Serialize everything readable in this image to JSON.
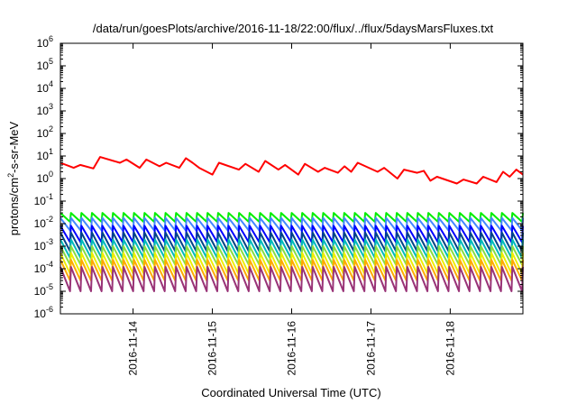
{
  "chart_data": {
    "type": "line",
    "title": "/data/run/goesPlots/archive/2016-11-18/22:00/flux/../flux/5daysMarsFluxes.txt",
    "xlabel": "Coordinated Universal Time (UTC)",
    "ylabel": "protons/cm2-s-sr-MeV",
    "y_scale": "log",
    "ylim": [
      1e-06,
      1000000.0
    ],
    "xlim": [
      "2016-11-13 02:00",
      "2016-11-18 22:00"
    ],
    "grid": false,
    "legend": "none",
    "x_ticks": [
      "2016-11-14",
      "2016-11-15",
      "2016-11-16",
      "2016-11-17",
      "2016-11-18"
    ],
    "y_ticks": [
      {
        "base": "10",
        "exp": "-6"
      },
      {
        "base": "10",
        "exp": "-5"
      },
      {
        "base": "10",
        "exp": "-4"
      },
      {
        "base": "10",
        "exp": "-3"
      },
      {
        "base": "10",
        "exp": "-2"
      },
      {
        "base": "10",
        "exp": "-1"
      },
      {
        "base": "10",
        "exp": "0"
      },
      {
        "base": "10",
        "exp": "1"
      },
      {
        "base": "10",
        "exp": "2"
      },
      {
        "base": "10",
        "exp": "3"
      },
      {
        "base": "10",
        "exp": "4"
      },
      {
        "base": "10",
        "exp": "5"
      },
      {
        "base": "10",
        "exp": "6"
      }
    ],
    "series": [
      {
        "color": "#ff0000",
        "x": [
          "2016-11-13 02:00",
          "2016-11-13 06:00",
          "2016-11-13 08:00",
          "2016-11-13 12:00",
          "2016-11-13 14:00",
          "2016-11-13 20:00",
          "2016-11-13 22:00",
          "2016-11-14 02:00",
          "2016-11-14 04:00",
          "2016-11-14 08:00",
          "2016-11-14 10:00",
          "2016-11-14 14:00",
          "2016-11-14 16:00",
          "2016-11-14 18:00",
          "2016-11-14 20:00",
          "2016-11-15 00:00",
          "2016-11-15 02:00",
          "2016-11-15 08:00",
          "2016-11-15 10:00",
          "2016-11-15 14:00",
          "2016-11-15 16:00",
          "2016-11-15 20:00",
          "2016-11-15 22:00",
          "2016-11-16 02:00",
          "2016-11-16 04:00",
          "2016-11-16 08:00",
          "2016-11-16 10:00",
          "2016-11-16 14:00",
          "2016-11-16 16:00",
          "2016-11-16 18:00",
          "2016-11-16 20:00",
          "2016-11-17 02:00",
          "2016-11-17 04:00",
          "2016-11-17 08:00",
          "2016-11-17 10:00",
          "2016-11-17 14:00",
          "2016-11-17 16:00",
          "2016-11-17 18:00",
          "2016-11-17 20:00",
          "2016-11-18 02:00",
          "2016-11-18 04:00",
          "2016-11-18 08:00",
          "2016-11-18 10:00",
          "2016-11-18 14:00",
          "2016-11-18 16:00",
          "2016-11-18 18:00",
          "2016-11-18 20:00",
          "2016-11-18 22:00"
        ],
        "y": [
          5,
          3,
          4,
          2.8,
          9,
          5,
          7,
          3,
          7,
          3.5,
          5,
          3,
          8,
          5,
          3,
          1.5,
          5,
          2.5,
          4.5,
          2,
          6,
          2.5,
          4,
          1.5,
          4.5,
          2,
          3,
          1.8,
          3.5,
          2,
          5,
          2,
          3,
          1,
          2.5,
          1.8,
          2.2,
          0.8,
          1.2,
          0.6,
          0.9,
          0.6,
          1.2,
          0.7,
          2,
          1.2,
          2.5,
          1.5
        ]
      },
      {
        "color": "#00ee00",
        "sawtooth": {
          "peak": 0.03,
          "trough": 0.012,
          "cycles": 44,
          "start": "2016-11-13 02:00",
          "end": "2016-11-18 22:00"
        }
      },
      {
        "color": "#4488ff",
        "sawtooth": {
          "peak": 0.018,
          "trough": 0.005,
          "cycles": 44,
          "start": "2016-11-13 02:00",
          "end": "2016-11-18 22:00"
        }
      },
      {
        "color": "#0000ff",
        "sawtooth": {
          "peak": 0.008,
          "trough": 0.0015,
          "cycles": 44,
          "start": "2016-11-13 02:00",
          "end": "2016-11-18 22:00"
        }
      },
      {
        "color": "#004488",
        "sawtooth": {
          "peak": 0.004,
          "trough": 0.0006,
          "cycles": 44,
          "start": "2016-11-13 02:00",
          "end": "2016-11-18 22:00"
        }
      },
      {
        "color": "#00bbbb",
        "sawtooth": {
          "peak": 0.002,
          "trough": 0.0003,
          "cycles": 44,
          "start": "2016-11-13 02:00",
          "end": "2016-11-18 22:00"
        }
      },
      {
        "color": "#88dd44",
        "sawtooth": {
          "peak": 0.001,
          "trough": 0.00015,
          "cycles": 44,
          "start": "2016-11-13 02:00",
          "end": "2016-11-18 22:00"
        }
      },
      {
        "color": "#eeee00",
        "sawtooth": {
          "peak": 0.0005,
          "trough": 6e-05,
          "cycles": 44,
          "start": "2016-11-13 02:00",
          "end": "2016-11-18 22:00"
        }
      },
      {
        "color": "#ffaa00",
        "sawtooth": {
          "peak": 0.00025,
          "trough": 3e-05,
          "cycles": 44,
          "start": "2016-11-13 02:00",
          "end": "2016-11-18 22:00"
        }
      },
      {
        "color": "#993377",
        "sawtooth": {
          "peak": 0.00012,
          "trough": 1e-05,
          "cycles": 44,
          "start": "2016-11-13 02:00",
          "end": "2016-11-18 22:00"
        }
      }
    ]
  }
}
